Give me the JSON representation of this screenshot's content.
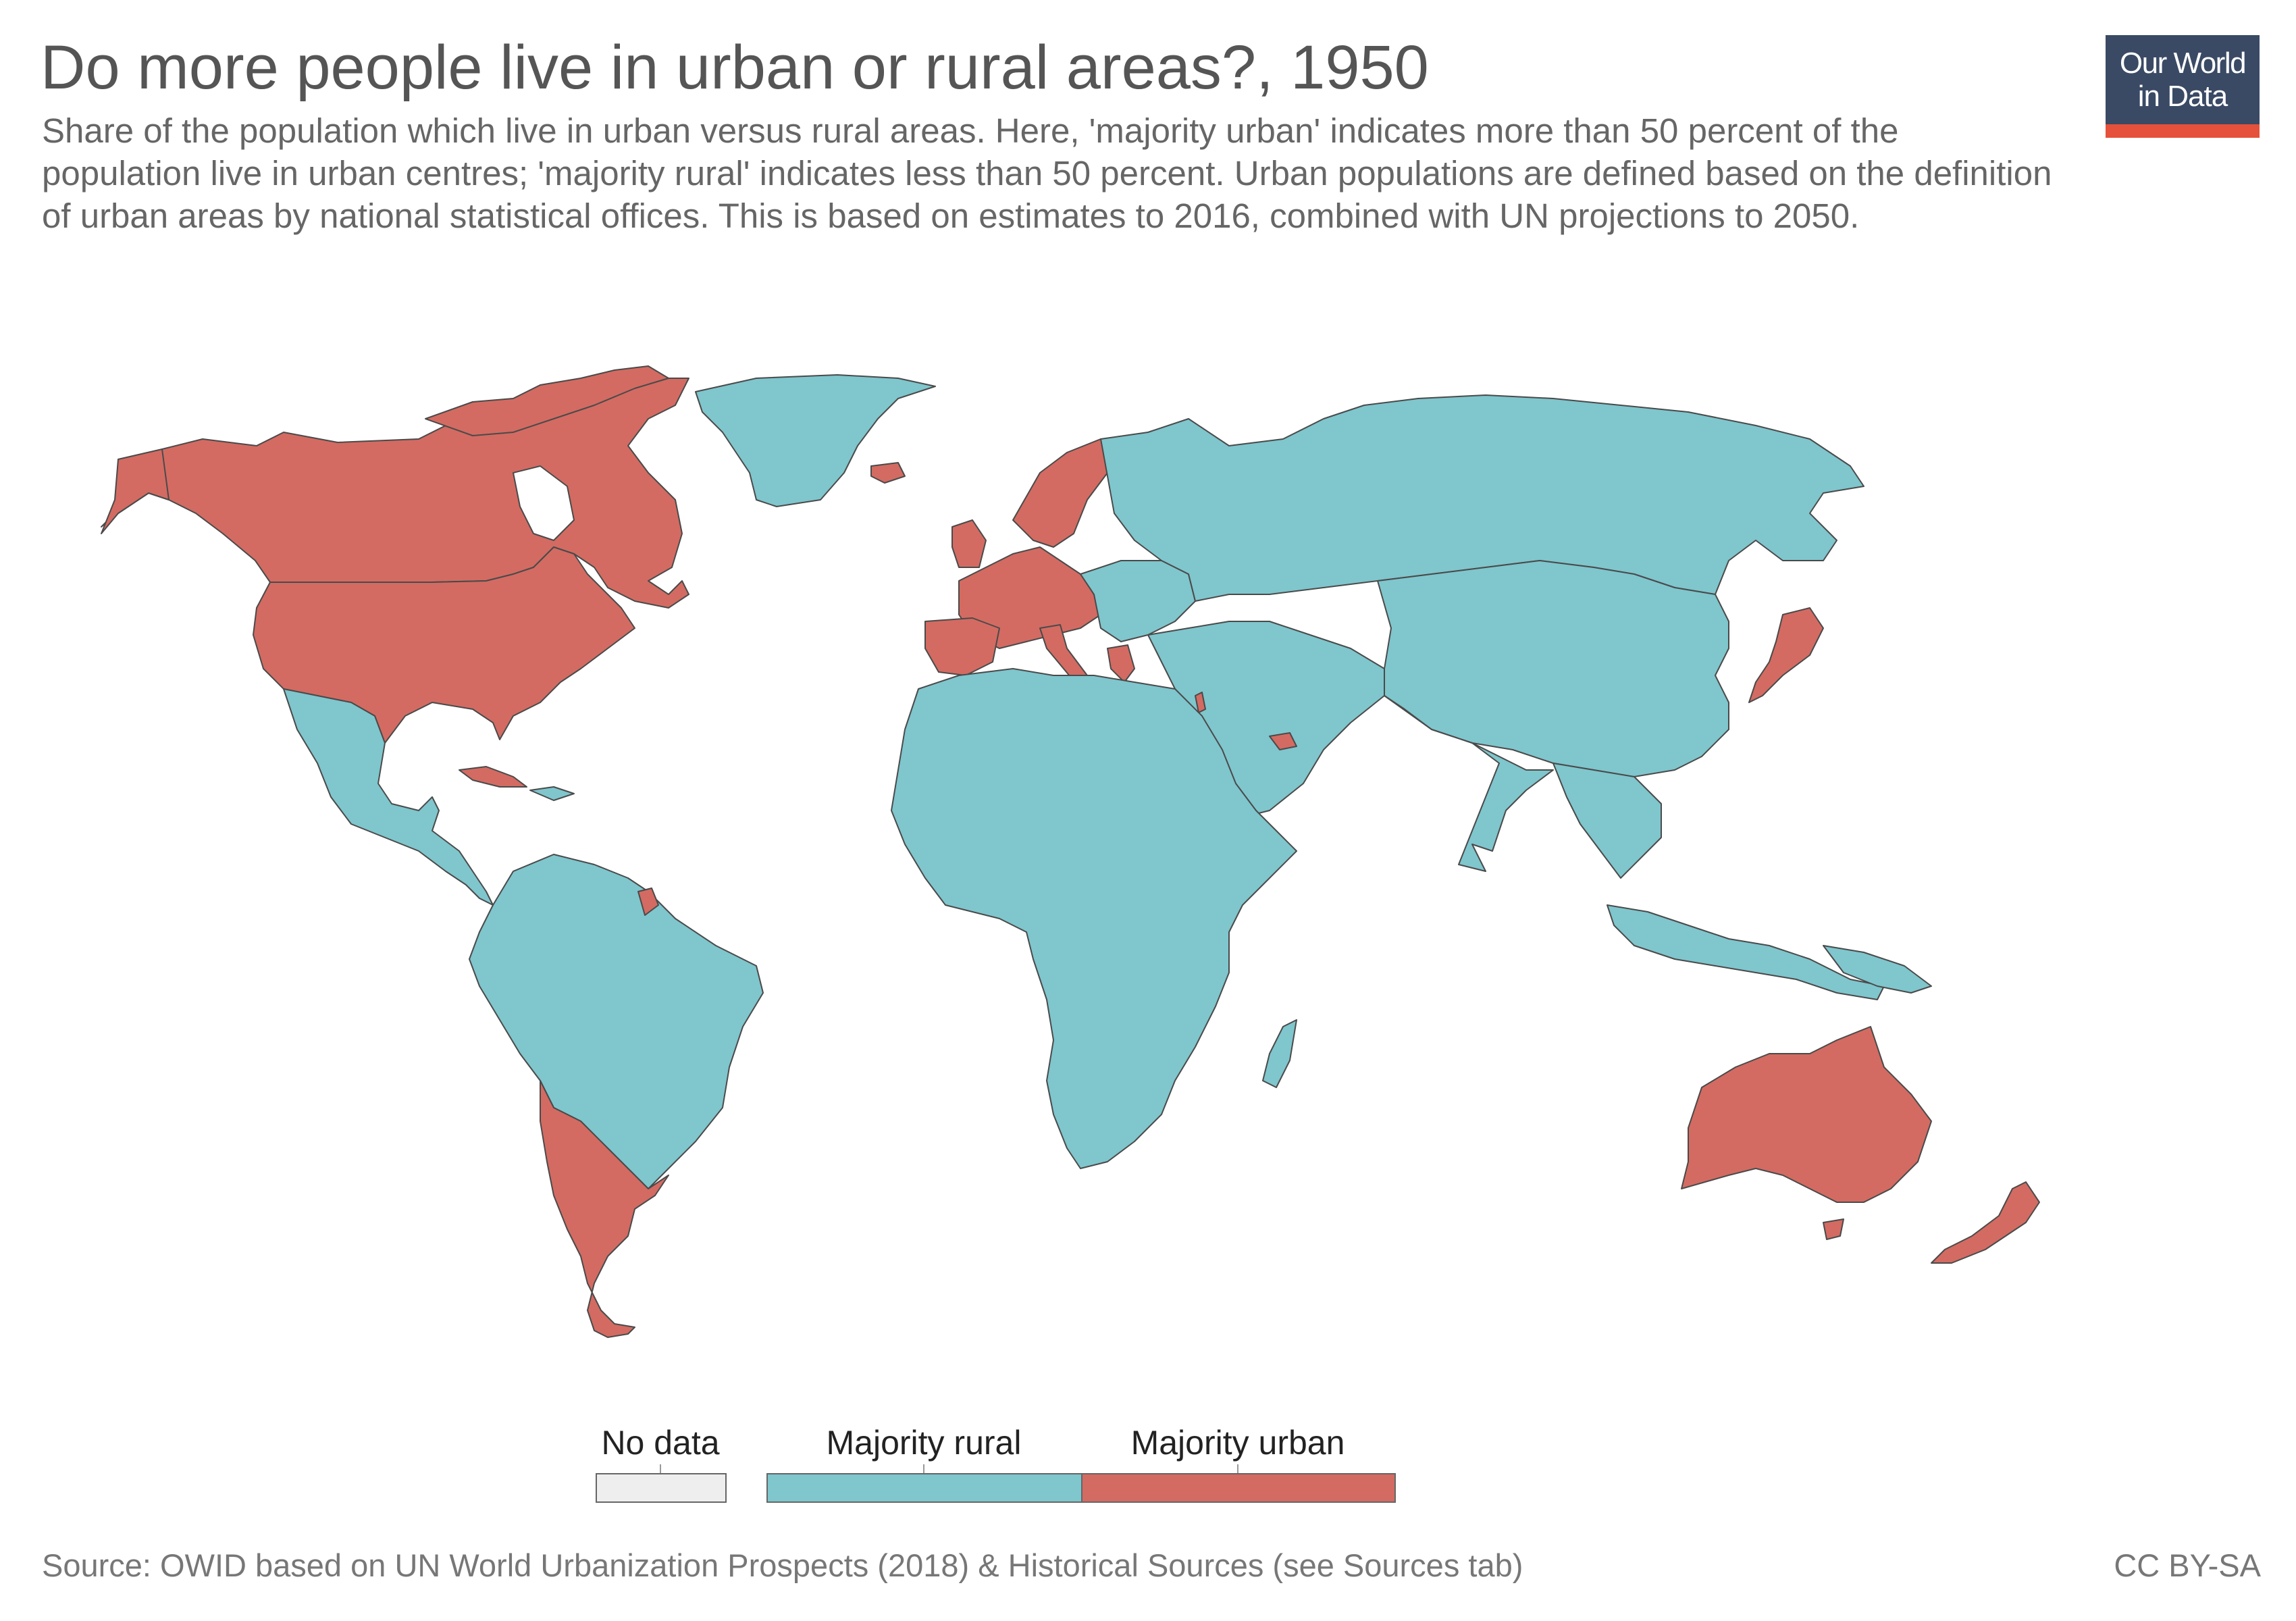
{
  "header": {
    "title": "Do more people live in urban or rural areas?, 1950",
    "subtitle": "Share of the population which live in urban versus rural areas. Here, 'majority urban' indicates more than 50 percent of the population live in urban centres; 'majority rural' indicates less than 50 percent. Urban populations are defined based on the definition of urban areas by national statistical offices. This is based on estimates to 2016, combined with UN projections to 2050."
  },
  "logo": {
    "line1": "Our World",
    "line2": "in Data"
  },
  "colors": {
    "majority_rural": "#7fc6cd",
    "majority_urban": "#d36b62",
    "no_data": "#eeeeee",
    "border": "#4a4a4a",
    "logo_bg": "#3a4a65",
    "logo_accent": "#e5513a"
  },
  "map": {
    "year": "1950",
    "majority_urban_regions": [
      "Canada",
      "United States",
      "Greenland-adjacent arctic islands",
      "Western & Northern Europe",
      "Spain",
      "Italy",
      "Greece",
      "Japan",
      "Australia",
      "New Zealand",
      "Argentina",
      "Chile",
      "Uruguay",
      "Cuba",
      "French Guiana",
      "United Arab Emirates",
      "Israel"
    ],
    "majority_rural_regions": [
      "Greenland",
      "Russia",
      "Central Asia",
      "Middle East",
      "China",
      "India",
      "Southeast Asia",
      "Africa",
      "Mexico",
      "Central America",
      "Brazil",
      "Andean South America",
      "Madagascar",
      "Papua New Guinea"
    ]
  },
  "legend": {
    "no_data_label": "No data",
    "rural_label": "Majority rural",
    "urban_label": "Majority urban"
  },
  "footer": {
    "source": "Source: OWID based on UN World Urbanization Prospects (2018) & Historical Sources (see Sources tab)",
    "license": "CC BY-SA"
  }
}
